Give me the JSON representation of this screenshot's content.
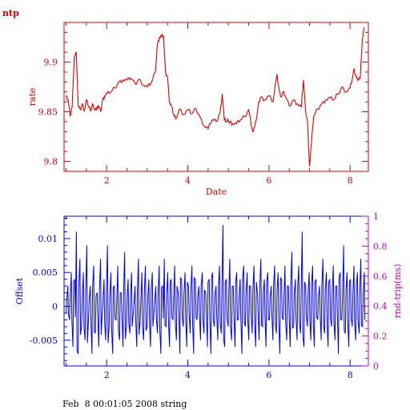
{
  "chart_data": [
    {
      "type": "line",
      "title": "ntp",
      "xlabel": "Date",
      "ylabel": "rate",
      "xlim": [
        0.95,
        8.45
      ],
      "ylim": [
        9.79,
        9.94
      ],
      "x_ticks": [
        2,
        4,
        6,
        8
      ],
      "y_ticks": [
        9.8,
        9.85,
        9.9
      ],
      "y_tick_labels": [
        "9.8",
        "9.85",
        "9.9"
      ],
      "color": "#e00000",
      "series": [
        {
          "x": [
            1.0,
            1.05,
            1.1,
            1.15,
            1.2,
            1.25,
            1.3,
            1.35,
            1.4,
            1.45,
            1.5,
            1.55,
            1.6,
            1.65,
            1.7,
            1.75,
            1.8,
            1.85,
            1.9,
            1.95,
            2.0,
            2.1,
            2.2,
            2.3,
            2.4,
            2.5,
            2.6,
            2.7,
            2.8,
            2.9,
            3.0,
            3.1,
            3.2,
            3.25,
            3.3,
            3.35,
            3.4,
            3.45,
            3.5,
            3.55,
            3.6,
            3.65,
            3.7,
            3.8,
            3.9,
            4.0,
            4.1,
            4.2,
            4.3,
            4.4,
            4.5,
            4.6,
            4.7,
            4.8,
            4.85,
            4.9,
            4.95,
            5.0,
            5.05,
            5.1,
            5.2,
            5.3,
            5.4,
            5.5,
            5.6,
            5.65,
            5.7,
            5.75,
            5.8,
            5.9,
            6.0,
            6.1,
            6.2,
            6.25,
            6.3,
            6.35,
            6.4,
            6.5,
            6.6,
            6.7,
            6.8,
            6.85,
            6.9,
            6.95,
            7.0,
            7.05,
            7.1,
            7.2,
            7.3,
            7.4,
            7.5,
            7.6,
            7.7,
            7.8,
            7.9,
            8.0,
            8.05,
            8.1,
            8.15,
            8.2,
            8.25,
            8.3,
            8.35
          ],
          "y": [
            9.865,
            9.862,
            9.846,
            9.855,
            9.905,
            9.91,
            9.856,
            9.852,
            9.858,
            9.851,
            9.862,
            9.856,
            9.851,
            9.858,
            9.853,
            9.852,
            9.856,
            9.85,
            9.862,
            9.866,
            9.868,
            9.87,
            9.874,
            9.88,
            9.882,
            9.882,
            9.884,
            9.878,
            9.883,
            9.877,
            9.875,
            9.879,
            9.89,
            9.918,
            9.925,
            9.926,
            9.926,
            9.89,
            9.885,
            9.86,
            9.855,
            9.847,
            9.843,
            9.853,
            9.847,
            9.852,
            9.848,
            9.853,
            9.845,
            9.836,
            9.833,
            9.842,
            9.84,
            9.85,
            9.868,
            9.842,
            9.84,
            9.841,
            9.84,
            9.838,
            9.838,
            9.842,
            9.845,
            9.852,
            9.83,
            9.835,
            9.845,
            9.86,
            9.865,
            9.862,
            9.866,
            9.86,
            9.888,
            9.872,
            9.865,
            9.87,
            9.866,
            9.856,
            9.862,
            9.858,
            9.855,
            9.882,
            9.852,
            9.84,
            9.795,
            9.82,
            9.845,
            9.853,
            9.858,
            9.862,
            9.864,
            9.862,
            9.868,
            9.875,
            9.87,
            9.874,
            9.882,
            9.893,
            9.885,
            9.883,
            9.884,
            9.922,
            9.935
          ]
        }
      ]
    },
    {
      "type": "line",
      "xlabel": "",
      "ylabel": "Offset",
      "y2label": "rnd-trip(ms)",
      "xlim": [
        0.95,
        8.45
      ],
      "ylim": [
        -0.0088,
        0.0133
      ],
      "y2lim": [
        0,
        1
      ],
      "x_ticks": [
        2,
        4,
        6,
        8
      ],
      "y_ticks": [
        -0.005,
        0,
        0.005,
        0.01
      ],
      "y_tick_labels": [
        "-0.005",
        "0",
        "0.005",
        "0.01"
      ],
      "y2_ticks": [
        0,
        0.2,
        0.4,
        0.6,
        0.8,
        1
      ],
      "y2_tick_labels": [
        "0",
        "0.2",
        "0.4",
        "0.6",
        "0.8",
        "1"
      ],
      "color": "#0000ff",
      "y2_color": "#cc00cc",
      "series": [
        {
          "x_start": 1.0,
          "x_end": 8.35,
          "y": [
            -0.001,
            0.003,
            -0.002,
            0.005,
            -0.006,
            0.004,
            0.011,
            -0.007,
            0.007,
            -0.003,
            0.005,
            -0.005,
            0.009,
            -0.002,
            0.003,
            -0.007,
            0.006,
            -0.004,
            0.002,
            -0.006,
            0.007,
            -0.001,
            0.004,
            -0.005,
            0.009,
            -0.003,
            0.005,
            -0.007,
            0.003,
            -0.002,
            0.006,
            -0.005,
            0.002,
            -0.006,
            0.008,
            -0.003,
            0.004,
            -0.004,
            0.005,
            -0.001,
            0.003,
            -0.006,
            0.007,
            -0.002,
            0.005,
            -0.005,
            0.006,
            -0.003,
            0.004,
            -0.006,
            0.005,
            -0.001,
            0.003,
            -0.004,
            0.006,
            -0.007,
            0.003,
            0.007,
            -0.003,
            0.005,
            -0.006,
            0.004,
            -0.002,
            0.006,
            -0.005,
            0.002,
            -0.007,
            0.004,
            -0.003,
            0.005,
            -0.006,
            0.003,
            -0.004,
            0.006,
            -0.007,
            0.004,
            -0.002,
            0.003,
            -0.005,
            0.005,
            -0.004,
            0.002,
            -0.006,
            0.004,
            -0.007,
            0.005,
            -0.003,
            0.003,
            -0.005,
            0.006,
            -0.004,
            0.012,
            -0.006,
            0.004,
            -0.003,
            0.007,
            -0.005,
            0.003,
            -0.006,
            0.005,
            -0.002,
            0.004,
            -0.007,
            0.006,
            -0.003,
            0.005,
            -0.005,
            0.003,
            -0.004,
            0.006,
            -0.006,
            0.002,
            -0.005,
            0.007,
            -0.003,
            0.004,
            -0.006,
            0.005,
            -0.002,
            0.003,
            -0.005,
            0.006,
            -0.004,
            0.005,
            -0.007,
            0.004,
            -0.002,
            0.006,
            -0.005,
            0.003,
            -0.006,
            0.008,
            -0.003,
            0.004,
            -0.005,
            0.006,
            -0.004,
            0.011,
            -0.006,
            0.003,
            -0.003,
            0.005,
            -0.005,
            0.006,
            -0.006,
            0.004,
            -0.002,
            0.003,
            -0.005,
            0.007,
            -0.004,
            0.005,
            -0.006,
            0.004,
            -0.003,
            0.006,
            -0.005,
            0.003,
            -0.007,
            0.005,
            -0.002,
            0.009,
            -0.004,
            0.005,
            -0.006,
            0.004,
            -0.003,
            0.006,
            -0.005,
            0.005,
            -0.004,
            0.007,
            -0.003,
            0.005
          ]
        }
      ]
    }
  ],
  "footer": "Feb  8 00:01:05 2008 string"
}
